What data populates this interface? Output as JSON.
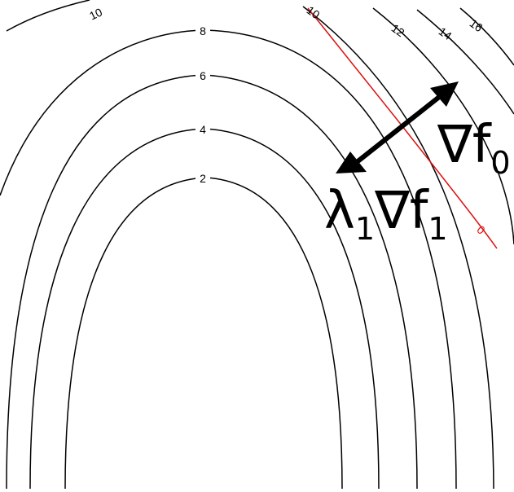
{
  "contour_labels": {
    "c2": "2",
    "c4": "4",
    "c6": "6",
    "c8": "8",
    "c10_left": "10",
    "c10_right": "10",
    "c12": "12",
    "c14": "14",
    "c16": "16"
  },
  "constraint_label": "0",
  "annotations": {
    "grad_f0_symbol": "∇f",
    "grad_f0_subscript": "0",
    "lambda_symbol": "λ",
    "lambda_subscript": "1",
    "grad_f1_symbol": "∇f",
    "grad_f1_subscript": "1"
  },
  "colors": {
    "contour": "#000000",
    "constraint": "#dd1111",
    "arrow": "#000000"
  }
}
